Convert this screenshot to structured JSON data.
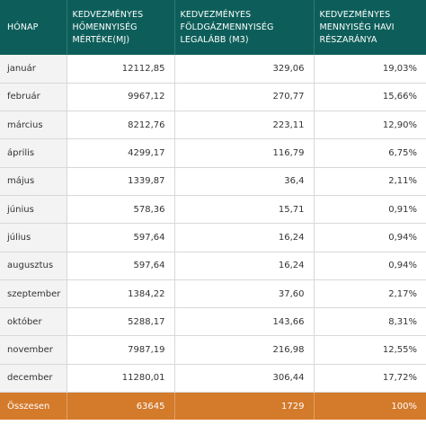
{
  "colors": {
    "header_bg": "#0d5e5a",
    "total_bg": "#d37a2b",
    "month_col_bg": "#f3f3f3"
  },
  "headers": {
    "month": "HÓNAP",
    "heat": "KEDVEZMÉNYES HŐMENNYISÉG MÉRTÉKE(MJ)",
    "gas": "KEDVEZMÉNYES FÖLDGÁZMENNYISÉG LEGALÁBB (M3)",
    "share": "KEDVEZMÉNYES MENNYISÉG HAVI RÉSZARÁNYA"
  },
  "rows": [
    {
      "month": "január",
      "heat": "12112,85",
      "gas": "329,06",
      "share": "19,03%"
    },
    {
      "month": "február",
      "heat": "9967,12",
      "gas": "270,77",
      "share": "15,66%"
    },
    {
      "month": "március",
      "heat": "8212,76",
      "gas": "223,11",
      "share": "12,90%"
    },
    {
      "month": "április",
      "heat": "4299,17",
      "gas": "116,79",
      "share": "6,75%"
    },
    {
      "month": "május",
      "heat": "1339,87",
      "gas": "36,4",
      "share": "2,11%"
    },
    {
      "month": "június",
      "heat": "578,36",
      "gas": "15,71",
      "share": "0,91%"
    },
    {
      "month": "július",
      "heat": "597,64",
      "gas": "16,24",
      "share": "0,94%"
    },
    {
      "month": "augusztus",
      "heat": "597,64",
      "gas": "16,24",
      "share": "0,94%"
    },
    {
      "month": "szeptember",
      "heat": "1384,22",
      "gas": "37,60",
      "share": "2,17%"
    },
    {
      "month": "október",
      "heat": "5288,17",
      "gas": "143,66",
      "share": "8,31%"
    },
    {
      "month": "november",
      "heat": "7987,19",
      "gas": "216,98",
      "share": "12,55%"
    },
    {
      "month": "december",
      "heat": "11280,01",
      "gas": "306,44",
      "share": "17,72%"
    }
  ],
  "total": {
    "label": "Összesen",
    "heat": "63645",
    "gas": "1729",
    "share": "100%"
  }
}
